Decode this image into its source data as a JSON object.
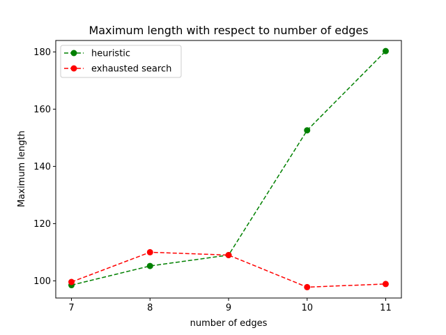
{
  "chart_data": {
    "type": "line",
    "title": "Maximum length with respect to number of edges",
    "xlabel": "number of edges",
    "ylabel": "Maximum length",
    "x": [
      7,
      8,
      9,
      10,
      11
    ],
    "xlim": [
      6.8,
      11.2
    ],
    "ylim": [
      94,
      184
    ],
    "x_ticks": [
      "7",
      "8",
      "9",
      "10",
      "11"
    ],
    "y_ticks": [
      100,
      120,
      140,
      160,
      180
    ],
    "grid": false,
    "legend_position": "top-left",
    "series": [
      {
        "name": "heuristic",
        "color": "#008000",
        "line_style": "dashed",
        "marker": "circle",
        "values": [
          98.5,
          105.2,
          109.0,
          152.6,
          180.3
        ]
      },
      {
        "name": "exhausted search",
        "color": "#ff0000",
        "line_style": "dashed",
        "marker": "circle",
        "values": [
          99.6,
          110.0,
          109.0,
          97.8,
          98.9
        ]
      }
    ]
  }
}
